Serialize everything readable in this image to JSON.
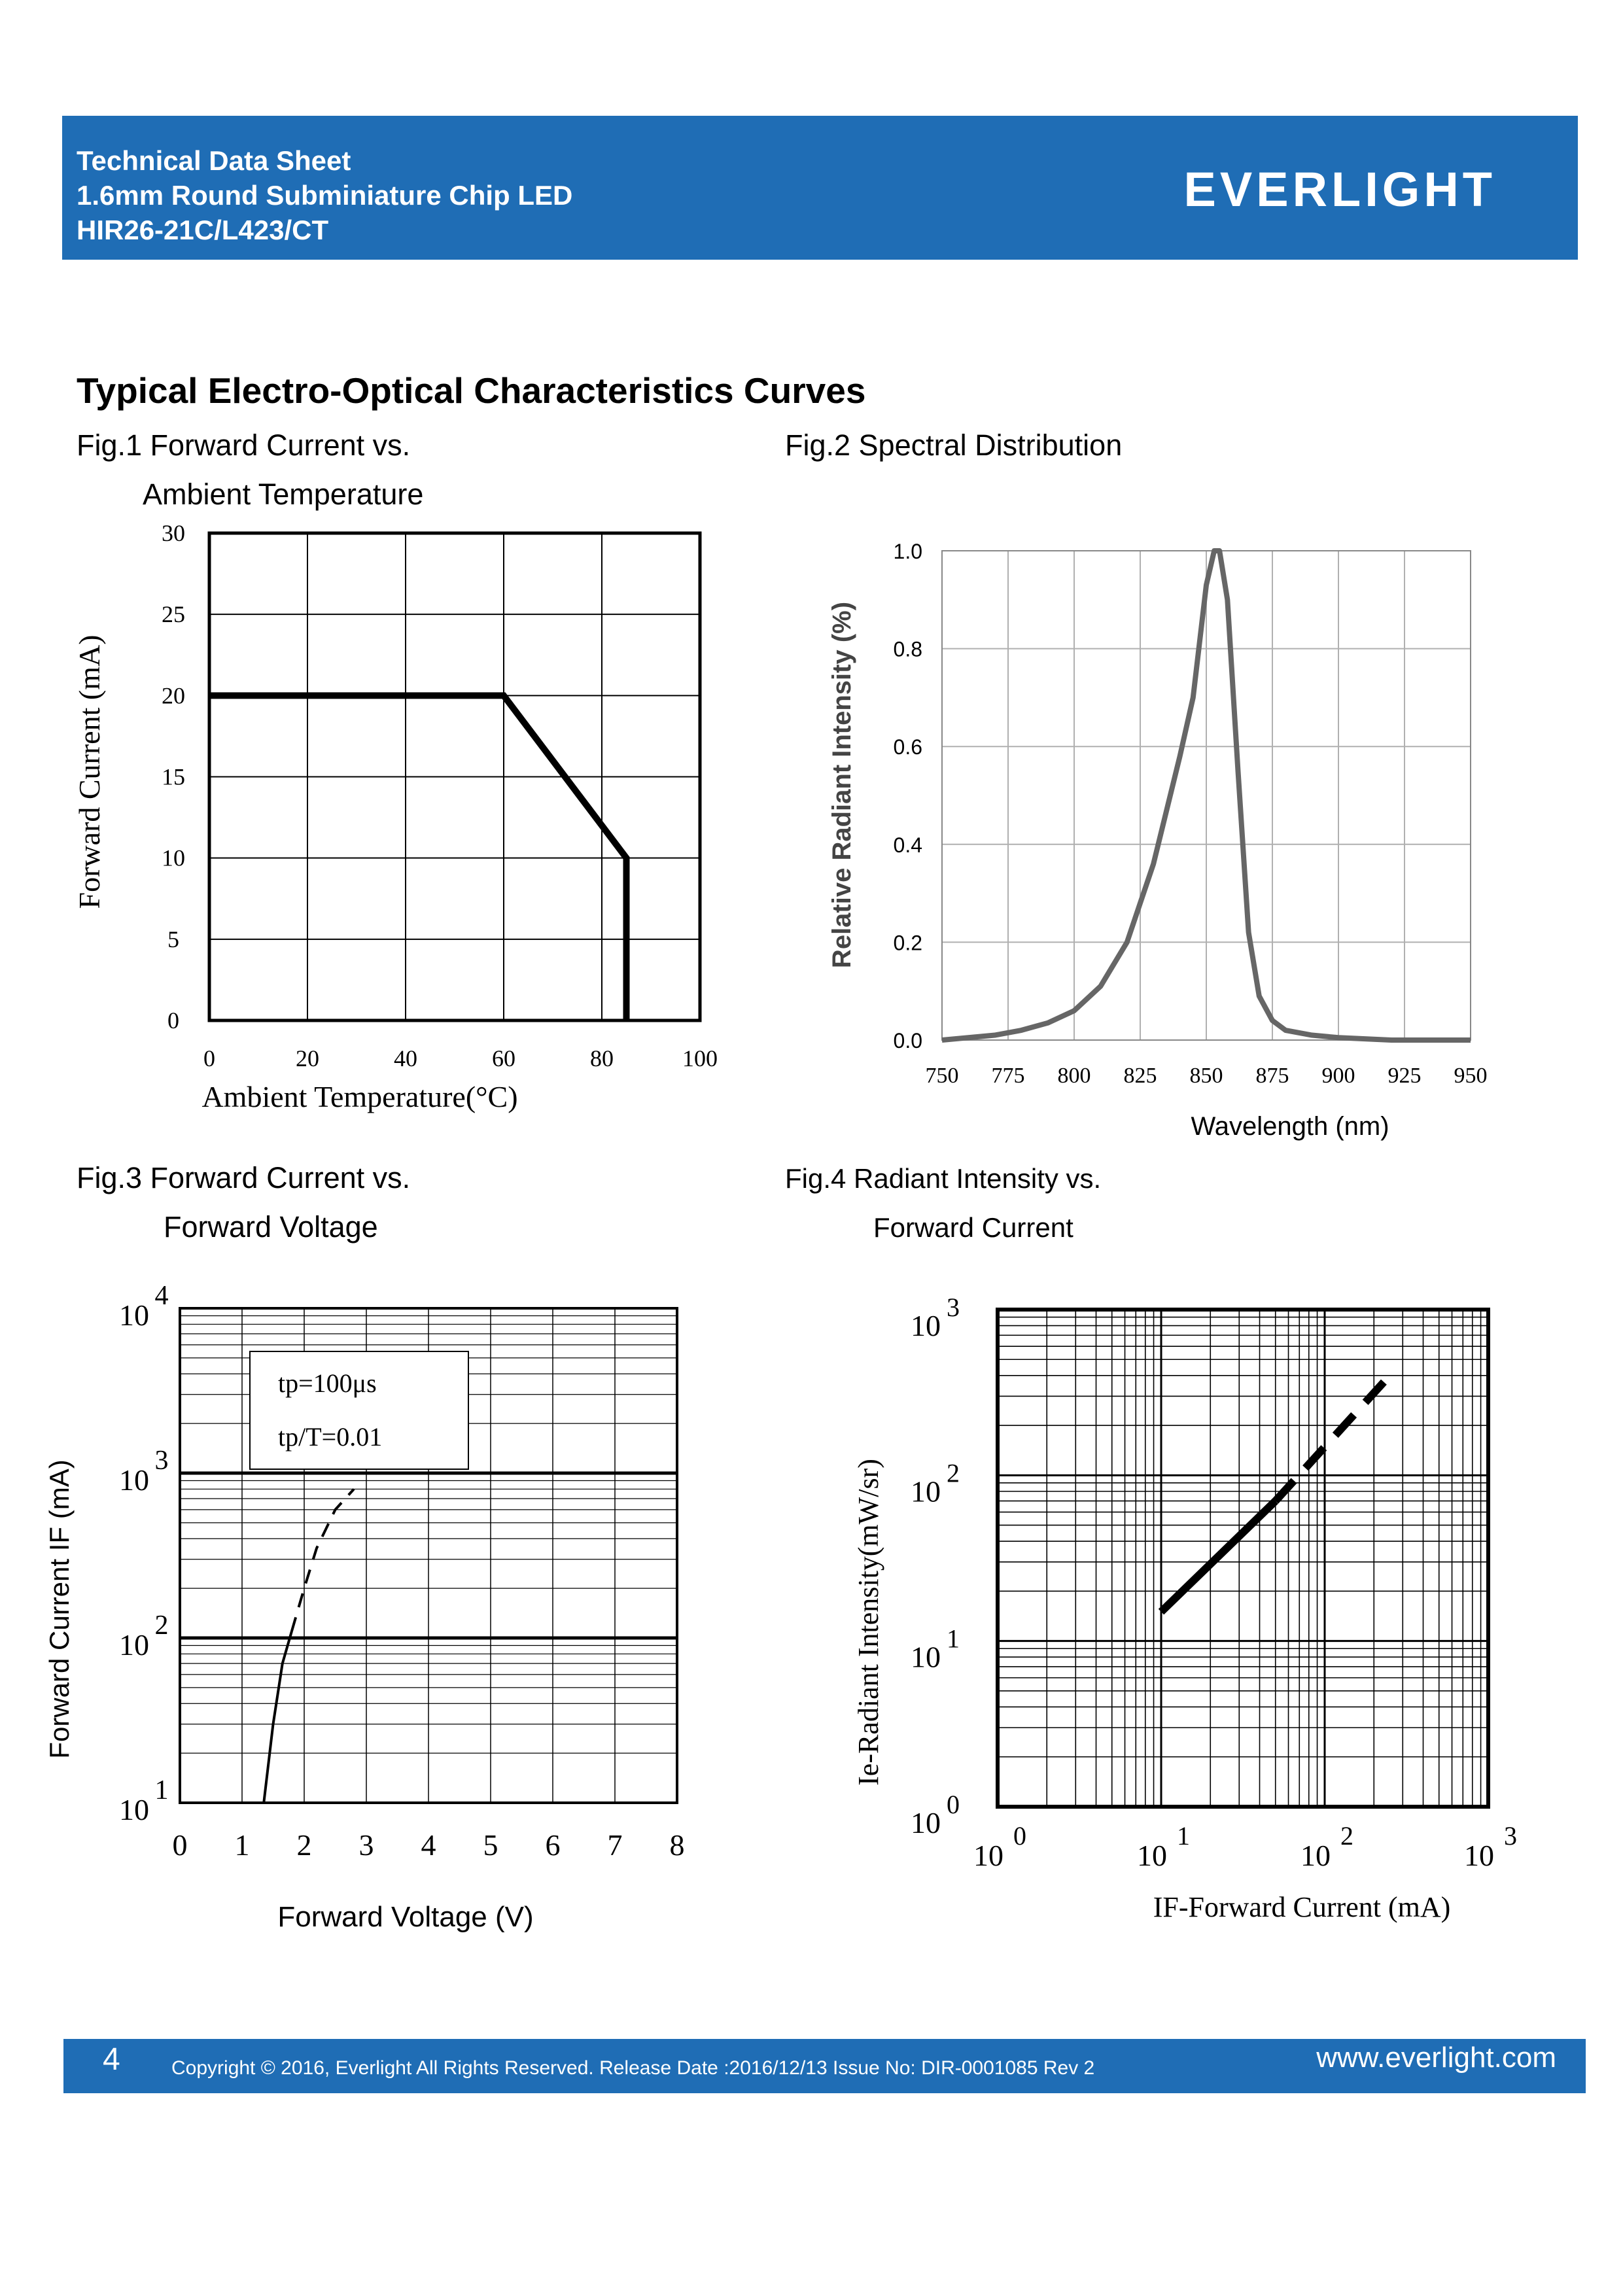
{
  "header": {
    "line1": "Technical Data Sheet",
    "line2": "1.6mm Round Subminiature Chip LED",
    "line3": "HIR26-21C/L423/CT",
    "logo": "EVERLIGHT"
  },
  "section_title": "Typical Electro-Optical Characteristics Curves",
  "figures": {
    "fig1_a": "Fig.1 Forward Current vs.",
    "fig1_b": "Ambient Temperature",
    "fig2": "Fig.2 Spectral Distribution",
    "fig3_a": "Fig.3 Forward Current vs.",
    "fig3_b": "Forward Voltage",
    "fig4_a": "Fig.4 Radiant Intensity vs.",
    "fig4_b": "Forward Current"
  },
  "chart_data": [
    {
      "type": "line",
      "xlabel": "Ambient Temperature(°C)",
      "ylabel": "Forward Current (mA)",
      "xlim": [
        0,
        100
      ],
      "ylim": [
        0,
        30
      ],
      "x_ticks": [
        "0",
        "20",
        "40",
        "60",
        "80",
        "100"
      ],
      "y_ticks": [
        "0",
        "5",
        "10",
        "15",
        "20",
        "25",
        "30"
      ],
      "grid": true,
      "series": [
        {
          "x": [
            0,
            60,
            85,
            85
          ],
          "y": [
            20,
            20,
            10,
            0
          ]
        }
      ]
    },
    {
      "type": "line",
      "xlabel": "Wavelength (nm)",
      "ylabel": "Relative Radiant Intensity (%)",
      "xlim": [
        750,
        950
      ],
      "ylim": [
        0,
        1
      ],
      "x_ticks": [
        "750",
        "775",
        "800",
        "825",
        "850",
        "875",
        "900",
        "925",
        "950"
      ],
      "y_ticks": [
        "0.0",
        "0.2",
        "0.4",
        "0.6",
        "0.8",
        "1.0"
      ],
      "grid": true,
      "series": [
        {
          "x": [
            750,
            770,
            780,
            790,
            800,
            810,
            820,
            830,
            840,
            845,
            850,
            853,
            855,
            858,
            862,
            866,
            870,
            875,
            880,
            890,
            900,
            920,
            950
          ],
          "y": [
            0.0,
            0.01,
            0.02,
            0.035,
            0.06,
            0.11,
            0.2,
            0.36,
            0.58,
            0.7,
            0.93,
            1.0,
            1.0,
            0.9,
            0.55,
            0.22,
            0.09,
            0.04,
            0.02,
            0.01,
            0.005,
            0.0,
            0.0
          ]
        }
      ]
    },
    {
      "type": "line",
      "xlabel": "Forward Voltage (V)",
      "ylabel": "Forward Current IF (mA)",
      "xlim": [
        0,
        8
      ],
      "ylim": [
        10,
        10000
      ],
      "yscale": "log",
      "x_ticks": [
        "0",
        "1",
        "2",
        "3",
        "4",
        "5",
        "6",
        "7",
        "8"
      ],
      "y_ticks": [
        "10",
        "100",
        "1000",
        "10000"
      ],
      "annotations": [
        "tp=100μs",
        "tp/T=0.01"
      ],
      "grid": true,
      "series": [
        {
          "style": "solid",
          "x": [
            1.35,
            1.5,
            1.65,
            1.8
          ],
          "y": [
            10,
            30,
            70,
            110
          ]
        },
        {
          "style": "dashed",
          "x": [
            1.8,
            2.0,
            2.2,
            2.5,
            2.8
          ],
          "y": [
            110,
            200,
            350,
            600,
            800
          ]
        }
      ]
    },
    {
      "type": "line",
      "xlabel": "IF-Forward Current (mA)",
      "ylabel": "Ie-Radiant Intensity(mW/sr)",
      "xscale": "log",
      "yscale": "log",
      "xlim": [
        1,
        1000
      ],
      "ylim": [
        1,
        1000
      ],
      "x_ticks": [
        "1",
        "10",
        "100",
        "1000"
      ],
      "y_ticks": [
        "1",
        "10",
        "100",
        "1000"
      ],
      "grid": true,
      "series": [
        {
          "style": "solid",
          "x": [
            10,
            50
          ],
          "y": [
            15,
            70
          ]
        },
        {
          "style": "dashed",
          "x": [
            50,
            250
          ],
          "y": [
            70,
            400
          ]
        }
      ]
    }
  ],
  "footer": {
    "page": "4",
    "copyright": "Copyright © 2016, Everlight All Rights Reserved. Release Date :2016/12/13    Issue No: DIR-0001085      Rev 2",
    "website": "www.everlight.com"
  }
}
